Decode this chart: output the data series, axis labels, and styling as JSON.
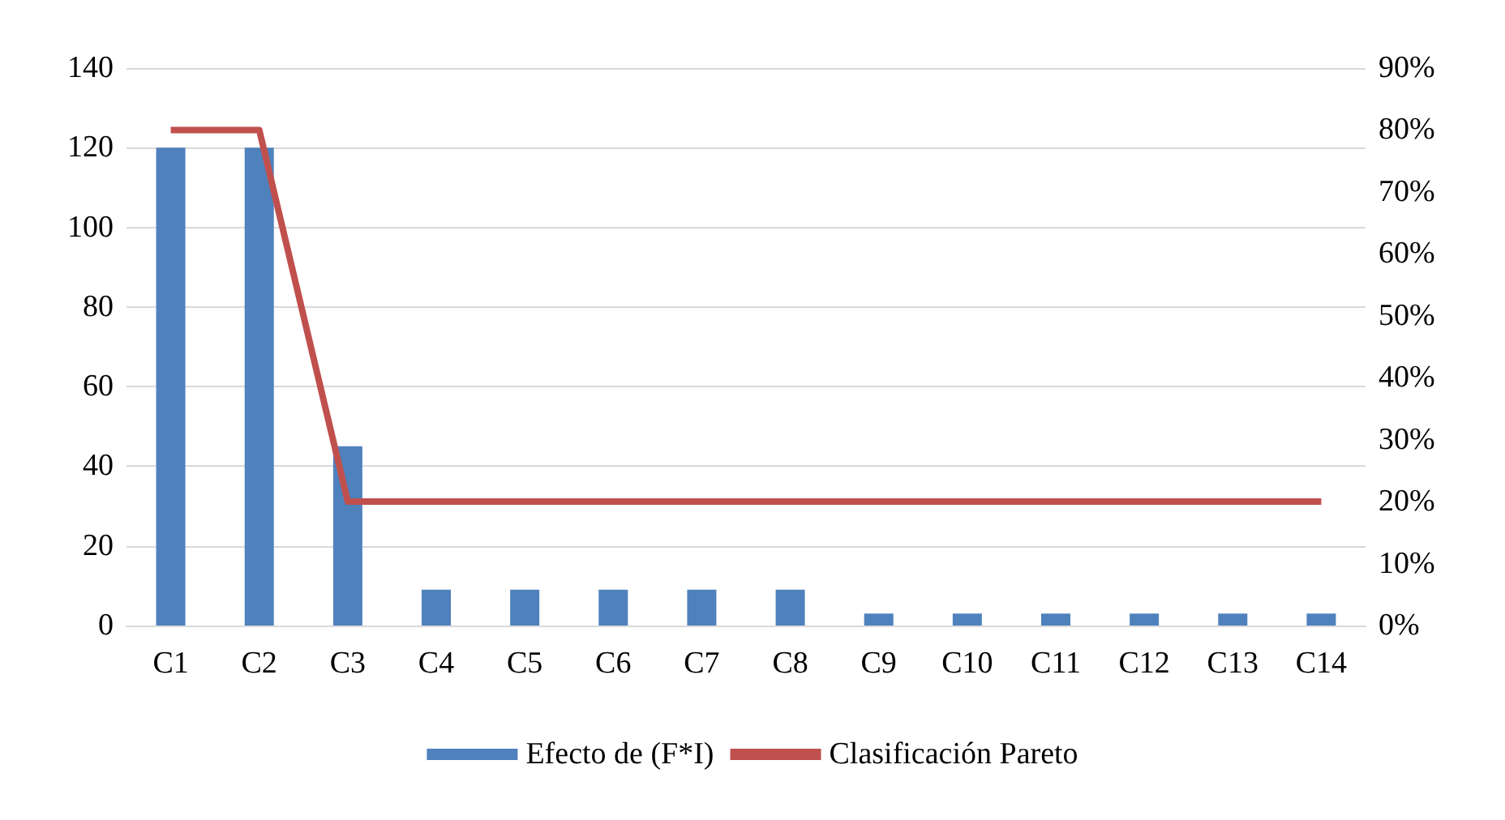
{
  "chart_data": {
    "type": "bar",
    "categories": [
      "C1",
      "C2",
      "C3",
      "C4",
      "C5",
      "C6",
      "C7",
      "C8",
      "C9",
      "C10",
      "C11",
      "C12",
      "C13",
      "C14"
    ],
    "series": [
      {
        "name": "Efecto de (F*I)",
        "color": "#4f81bd",
        "values": [
          120,
          120,
          45,
          9,
          9,
          9,
          9,
          9,
          3,
          3,
          3,
          3,
          3,
          3
        ]
      },
      {
        "name": "Clasificación Pareto",
        "type": "line",
        "axis": "y2",
        "color": "#c0504d",
        "values": [
          80,
          80,
          20,
          20,
          20,
          20,
          20,
          20,
          20,
          20,
          20,
          20,
          20,
          20
        ]
      }
    ],
    "ylim": [
      0,
      140
    ],
    "yticks": [
      0,
      20,
      40,
      60,
      80,
      100,
      120,
      140
    ],
    "y2lim": [
      0,
      90
    ],
    "y2ticks": [
      {
        "value": 0,
        "label": "0%"
      },
      {
        "value": 10,
        "label": "10%"
      },
      {
        "value": 20,
        "label": "20%"
      },
      {
        "value": 30,
        "label": "30%"
      },
      {
        "value": 40,
        "label": "40%"
      },
      {
        "value": 50,
        "label": "50%"
      },
      {
        "value": 60,
        "label": "60%"
      },
      {
        "value": 70,
        "label": "70%"
      },
      {
        "value": 80,
        "label": "80%"
      },
      {
        "value": 90,
        "label": "90%"
      }
    ],
    "grid": "y",
    "legend": "bottom",
    "marker": "none"
  }
}
